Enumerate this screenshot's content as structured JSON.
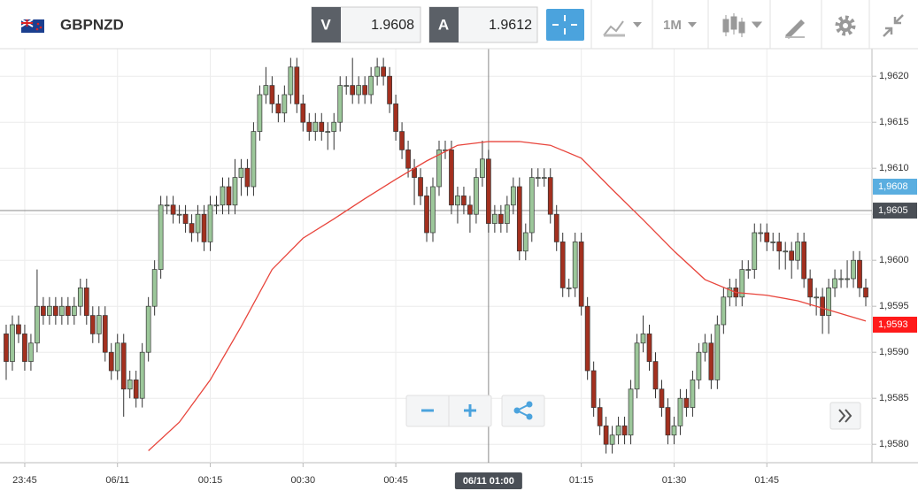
{
  "header": {
    "symbol": "GBPNZD",
    "bid_letter": "V",
    "bid": 1.9608,
    "ask_letter": "A",
    "ask": 1.9612,
    "timeframe": "1M"
  },
  "chart_data": {
    "type": "candlestick",
    "xlim": [
      "23:41",
      "02:02"
    ],
    "ylim": [
      1.9578,
      1.9623
    ],
    "xticks": [
      "23:45",
      {
        "value": "00:00",
        "label": "06/11"
      },
      "00:15",
      "00:30",
      "00:45",
      "01:15",
      "01:30",
      "01:45"
    ],
    "yticks": [
      {
        "value": 1.958,
        "label": "1,9580"
      },
      {
        "value": 1.9585,
        "label": "1,9585"
      },
      {
        "value": 1.959,
        "label": "1,9590"
      },
      {
        "value": 1.9595,
        "label": "1,9595"
      },
      {
        "value": 1.96,
        "label": "1,9600"
      },
      {
        "value": 1.9605,
        "label": "1,9605"
      },
      {
        "value": 1.961,
        "label": "1,9610"
      },
      {
        "value": 1.9615,
        "label": "1,9615"
      },
      {
        "value": 1.962,
        "label": "1,9620"
      }
    ],
    "grid": true,
    "up_color": "#9cc79a",
    "down_color": "#a3301f",
    "x": [
      "23:42",
      "23:43",
      "23:44",
      "23:45",
      "23:46",
      "23:47",
      "23:48",
      "23:49",
      "23:50",
      "23:51",
      "23:52",
      "23:53",
      "23:54",
      "23:55",
      "23:56",
      "23:57",
      "23:58",
      "23:59",
      "00:00",
      "00:01",
      "00:02",
      "00:03",
      "00:04",
      "00:05",
      "00:06",
      "00:07",
      "00:08",
      "00:09",
      "00:10",
      "00:11",
      "00:12",
      "00:13",
      "00:14",
      "00:15",
      "00:16",
      "00:17",
      "00:18",
      "00:19",
      "00:20",
      "00:21",
      "00:22",
      "00:23",
      "00:24",
      "00:25",
      "00:26",
      "00:27",
      "00:28",
      "00:29",
      "00:30",
      "00:31",
      "00:32",
      "00:33",
      "00:34",
      "00:35",
      "00:36",
      "00:37",
      "00:38",
      "00:39",
      "00:40",
      "00:41",
      "00:42",
      "00:43",
      "00:44",
      "00:45",
      "00:46",
      "00:47",
      "00:48",
      "00:49",
      "00:50",
      "00:51",
      "00:52",
      "00:53",
      "00:54",
      "00:55",
      "00:56",
      "00:57",
      "00:58",
      "00:59",
      "01:00",
      "01:01",
      "01:02",
      "01:03",
      "01:04",
      "01:05",
      "01:06",
      "01:07",
      "01:08",
      "01:09",
      "01:10",
      "01:11",
      "01:12",
      "01:13",
      "01:14",
      "01:15",
      "01:16",
      "01:17",
      "01:18",
      "01:19",
      "01:20",
      "01:21",
      "01:22",
      "01:23",
      "01:24",
      "01:25",
      "01:26",
      "01:27",
      "01:28",
      "01:29",
      "01:30",
      "01:31",
      "01:32",
      "01:33",
      "01:34",
      "01:35",
      "01:36",
      "01:37",
      "01:38",
      "01:39",
      "01:40",
      "01:41",
      "01:42",
      "01:43",
      "01:44",
      "01:45",
      "01:46",
      "01:47",
      "01:48",
      "01:49",
      "01:50",
      "01:51",
      "01:52",
      "01:53",
      "01:54",
      "01:55",
      "01:56",
      "01:57",
      "01:58",
      "01:59",
      "02:00",
      "02:01"
    ],
    "candles": [
      [
        1.9592,
        1.9593,
        1.9587,
        1.9589
      ],
      [
        1.9589,
        1.9594,
        1.9588,
        1.9593
      ],
      [
        1.9593,
        1.9594,
        1.9591,
        1.9592
      ],
      [
        1.9592,
        1.9593,
        1.9588,
        1.9589
      ],
      [
        1.9589,
        1.9592,
        1.9588,
        1.9591
      ],
      [
        1.9591,
        1.9599,
        1.959,
        1.9595
      ],
      [
        1.9595,
        1.9596,
        1.9593,
        1.9594
      ],
      [
        1.9594,
        1.9596,
        1.9593,
        1.9595
      ],
      [
        1.9595,
        1.9596,
        1.9593,
        1.9594
      ],
      [
        1.9594,
        1.9596,
        1.9593,
        1.9595
      ],
      [
        1.9595,
        1.9596,
        1.9593,
        1.9594
      ],
      [
        1.9594,
        1.9596,
        1.9593,
        1.9595
      ],
      [
        1.9595,
        1.9598,
        1.9594,
        1.9597
      ],
      [
        1.9597,
        1.9598,
        1.9593,
        1.9594
      ],
      [
        1.9594,
        1.9595,
        1.9591,
        1.9592
      ],
      [
        1.9592,
        1.9595,
        1.9591,
        1.9594
      ],
      [
        1.9594,
        1.9595,
        1.9589,
        1.959
      ],
      [
        1.959,
        1.9591,
        1.9587,
        1.9588
      ],
      [
        1.9588,
        1.9592,
        1.9587,
        1.9591
      ],
      [
        1.9591,
        1.9592,
        1.9583,
        1.9586
      ],
      [
        1.9586,
        1.9588,
        1.9585,
        1.9587
      ],
      [
        1.9587,
        1.9588,
        1.9584,
        1.9585
      ],
      [
        1.9585,
        1.9591,
        1.9584,
        1.959
      ],
      [
        1.959,
        1.9596,
        1.9589,
        1.9595
      ],
      [
        1.9595,
        1.96,
        1.9594,
        1.9599
      ],
      [
        1.9599,
        1.9607,
        1.9598,
        1.9606
      ],
      [
        1.9606,
        1.9607,
        1.9605,
        1.9606
      ],
      [
        1.9606,
        1.9607,
        1.9604,
        1.9605
      ],
      [
        1.9605,
        1.9606,
        1.9604,
        1.9605
      ],
      [
        1.9605,
        1.9606,
        1.9603,
        1.9604
      ],
      [
        1.9604,
        1.9605,
        1.9602,
        1.9603
      ],
      [
        1.9603,
        1.9606,
        1.9602,
        1.9605
      ],
      [
        1.9605,
        1.9606,
        1.9601,
        1.9602
      ],
      [
        1.9602,
        1.9607,
        1.9601,
        1.9606
      ],
      [
        1.9606,
        1.9607,
        1.9605,
        1.9606
      ],
      [
        1.9606,
        1.9609,
        1.9605,
        1.9608
      ],
      [
        1.9608,
        1.9609,
        1.9605,
        1.9606
      ],
      [
        1.9606,
        1.9611,
        1.9605,
        1.9609
      ],
      [
        1.9609,
        1.9611,
        1.9607,
        1.961
      ],
      [
        1.961,
        1.9611,
        1.9607,
        1.9608
      ],
      [
        1.9608,
        1.9615,
        1.9607,
        1.9614
      ],
      [
        1.9614,
        1.9619,
        1.9613,
        1.9618
      ],
      [
        1.9618,
        1.9621,
        1.9617,
        1.9619
      ],
      [
        1.9619,
        1.962,
        1.9616,
        1.9617
      ],
      [
        1.9617,
        1.9618,
        1.9615,
        1.9616
      ],
      [
        1.9616,
        1.9619,
        1.9615,
        1.9618
      ],
      [
        1.9618,
        1.9622,
        1.9617,
        1.9621
      ],
      [
        1.9621,
        1.9622,
        1.9616,
        1.9617
      ],
      [
        1.9617,
        1.9618,
        1.9614,
        1.9615
      ],
      [
        1.9615,
        1.9616,
        1.9613,
        1.9614
      ],
      [
        1.9614,
        1.9616,
        1.9613,
        1.9615
      ],
      [
        1.9615,
        1.9616,
        1.9613,
        1.9614
      ],
      [
        1.9614,
        1.9615,
        1.9612,
        1.9614
      ],
      [
        1.9614,
        1.9616,
        1.9612,
        1.9615
      ],
      [
        1.9615,
        1.962,
        1.9614,
        1.9619
      ],
      [
        1.9619,
        1.962,
        1.9618,
        1.9619
      ],
      [
        1.9619,
        1.9622,
        1.9617,
        1.9618
      ],
      [
        1.9618,
        1.962,
        1.9617,
        1.9619
      ],
      [
        1.9619,
        1.962,
        1.9617,
        1.9618
      ],
      [
        1.9618,
        1.9621,
        1.9617,
        1.962
      ],
      [
        1.962,
        1.9622,
        1.9619,
        1.9621
      ],
      [
        1.9621,
        1.9622,
        1.9619,
        1.962
      ],
      [
        1.962,
        1.9621,
        1.9616,
        1.9617
      ],
      [
        1.9617,
        1.9618,
        1.9613,
        1.9614
      ],
      [
        1.9614,
        1.9615,
        1.9611,
        1.9612
      ],
      [
        1.9612,
        1.9613,
        1.9609,
        1.961
      ],
      [
        1.961,
        1.9611,
        1.9606,
        1.9609
      ],
      [
        1.9609,
        1.961,
        1.9606,
        1.9607
      ],
      [
        1.9607,
        1.9608,
        1.9602,
        1.9603
      ],
      [
        1.9603,
        1.9609,
        1.9602,
        1.9608
      ],
      [
        1.9608,
        1.9613,
        1.9607,
        1.9612
      ],
      [
        1.9612,
        1.9613,
        1.9611,
        1.9612
      ],
      [
        1.9612,
        1.9613,
        1.9605,
        1.9606
      ],
      [
        1.9606,
        1.9608,
        1.9604,
        1.9607
      ],
      [
        1.9607,
        1.9608,
        1.9605,
        1.9606
      ],
      [
        1.9606,
        1.9607,
        1.9603,
        1.9605
      ],
      [
        1.9605,
        1.961,
        1.9604,
        1.9609
      ],
      [
        1.9609,
        1.9613,
        1.9608,
        1.9611
      ],
      [
        1.9611,
        1.9612,
        1.9603,
        1.9604
      ],
      [
        1.9604,
        1.9606,
        1.9603,
        1.9605
      ],
      [
        1.9605,
        1.9606,
        1.9603,
        1.9604
      ],
      [
        1.9604,
        1.9607,
        1.9603,
        1.9606
      ],
      [
        1.9606,
        1.9609,
        1.9605,
        1.9608
      ],
      [
        1.9608,
        1.9609,
        1.96,
        1.9601
      ],
      [
        1.9601,
        1.9604,
        1.96,
        1.9603
      ],
      [
        1.9603,
        1.961,
        1.9602,
        1.9609
      ],
      [
        1.9609,
        1.961,
        1.9608,
        1.9609
      ],
      [
        1.9609,
        1.961,
        1.9608,
        1.9609
      ],
      [
        1.9609,
        1.961,
        1.9604,
        1.9605
      ],
      [
        1.9605,
        1.9606,
        1.9601,
        1.9602
      ],
      [
        1.9602,
        1.9603,
        1.9596,
        1.9597
      ],
      [
        1.9597,
        1.9598,
        1.9596,
        1.9597
      ],
      [
        1.9597,
        1.9603,
        1.9596,
        1.9602
      ],
      [
        1.9602,
        1.9603,
        1.9594,
        1.9595
      ],
      [
        1.9595,
        1.9596,
        1.9587,
        1.9588
      ],
      [
        1.9588,
        1.9589,
        1.9583,
        1.9584
      ],
      [
        1.9584,
        1.9585,
        1.9581,
        1.9582
      ],
      [
        1.9582,
        1.9583,
        1.9579,
        1.958
      ],
      [
        1.958,
        1.9582,
        1.9579,
        1.9581
      ],
      [
        1.9581,
        1.9583,
        1.958,
        1.9582
      ],
      [
        1.9582,
        1.9583,
        1.958,
        1.9581
      ],
      [
        1.9581,
        1.9587,
        1.958,
        1.9586
      ],
      [
        1.9586,
        1.9592,
        1.9585,
        1.9591
      ],
      [
        1.9591,
        1.9594,
        1.959,
        1.9592
      ],
      [
        1.9592,
        1.9593,
        1.9588,
        1.9589
      ],
      [
        1.9589,
        1.959,
        1.9585,
        1.9586
      ],
      [
        1.9586,
        1.9587,
        1.9583,
        1.9584
      ],
      [
        1.9584,
        1.9585,
        1.958,
        1.9581
      ],
      [
        1.9581,
        1.9583,
        1.958,
        1.9582
      ],
      [
        1.9582,
        1.9586,
        1.9581,
        1.9585
      ],
      [
        1.9585,
        1.9586,
        1.9583,
        1.9584
      ],
      [
        1.9584,
        1.9588,
        1.9583,
        1.9587
      ],
      [
        1.9587,
        1.9591,
        1.9586,
        1.959
      ],
      [
        1.959,
        1.9592,
        1.9589,
        1.9591
      ],
      [
        1.9591,
        1.9592,
        1.9586,
        1.9587
      ],
      [
        1.9587,
        1.9594,
        1.9586,
        1.9593
      ],
      [
        1.9593,
        1.9597,
        1.9592,
        1.9596
      ],
      [
        1.9596,
        1.9598,
        1.9595,
        1.9597
      ],
      [
        1.9597,
        1.9598,
        1.9595,
        1.9596
      ],
      [
        1.9596,
        1.96,
        1.9595,
        1.9599
      ],
      [
        1.9599,
        1.96,
        1.9598,
        1.9599
      ],
      [
        1.9599,
        1.9604,
        1.9598,
        1.9603
      ],
      [
        1.9603,
        1.9604,
        1.9602,
        1.9603
      ],
      [
        1.9603,
        1.9604,
        1.9601,
        1.9602
      ],
      [
        1.9602,
        1.9603,
        1.9601,
        1.9602
      ],
      [
        1.9602,
        1.9603,
        1.9599,
        1.9601
      ],
      [
        1.9601,
        1.9602,
        1.9599,
        1.9601
      ],
      [
        1.9601,
        1.9602,
        1.9598,
        1.96
      ],
      [
        1.96,
        1.9603,
        1.9599,
        1.9602
      ],
      [
        1.9602,
        1.9603,
        1.9597,
        1.9598
      ],
      [
        1.9598,
        1.9599,
        1.9595,
        1.9596
      ],
      [
        1.9596,
        1.9597,
        1.9594,
        1.9596
      ],
      [
        1.9596,
        1.9597,
        1.9592,
        1.9594
      ],
      [
        1.9594,
        1.9598,
        1.9592,
        1.9597
      ],
      [
        1.9597,
        1.9599,
        1.9596,
        1.9598
      ],
      [
        1.9598,
        1.9599,
        1.9597,
        1.9598
      ],
      [
        1.9598,
        1.96,
        1.9597,
        1.9598
      ],
      [
        1.9598,
        1.9601,
        1.9597,
        1.96
      ],
      [
        1.96,
        1.9601,
        1.9596,
        1.9597
      ],
      [
        1.9597,
        1.9598,
        1.9595,
        1.9596
      ]
    ],
    "moving_average": {
      "color": "#e8453c",
      "x": [
        "00:05",
        "00:10",
        "00:15",
        "00:20",
        "00:25",
        "00:30",
        "00:35",
        "00:40",
        "00:45",
        "00:50",
        "00:55",
        "01:00",
        "01:05",
        "01:10",
        "01:15",
        "01:20",
        "01:25",
        "01:30",
        "01:35",
        "01:40",
        "01:45",
        "01:50",
        "01:55",
        "02:01"
      ],
      "values": [
        1.95793,
        1.95824,
        1.9587,
        1.95928,
        1.9599,
        1.96024,
        1.96045,
        1.96067,
        1.96088,
        1.96108,
        1.96125,
        1.96129,
        1.96129,
        1.96125,
        1.96111,
        1.96077,
        1.96044,
        1.9601,
        1.95979,
        1.95965,
        1.95962,
        1.95956,
        1.95946,
        1.95934
      ]
    },
    "crosshair": {
      "x": "01:00",
      "x_label": "06/11 01:00",
      "y": {
        "value": 1.96054,
        "label": "1,9605"
      }
    },
    "bid_tag": {
      "value": 1.9608,
      "label": "1,9608",
      "color": "#5aaee0"
    },
    "ma_tag": {
      "value": 1.9593,
      "label": "1,9593",
      "color": "#ff1a1a"
    }
  }
}
